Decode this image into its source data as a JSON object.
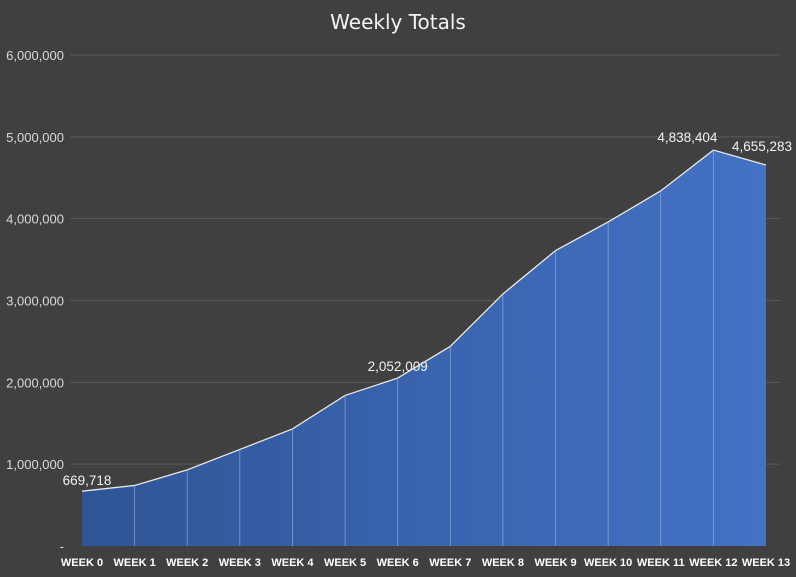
{
  "chart_data": {
    "type": "area",
    "title": "Weekly Totals",
    "xlabel": "",
    "ylabel": "",
    "categories": [
      "WEEK 0",
      "WEEK 1",
      "WEEK 2",
      "WEEK 3",
      "WEEK 4",
      "WEEK 5",
      "WEEK 6",
      "WEEK 7",
      "WEEK 8",
      "WEEK 9",
      "WEEK 10",
      "WEEK 11",
      "WEEK 12",
      "WEEK 13"
    ],
    "values": [
      669718,
      740000,
      930000,
      1180000,
      1430000,
      1840000,
      2052009,
      2440000,
      3080000,
      3610000,
      3960000,
      4340000,
      4838404,
      4655283
    ],
    "data_labels": [
      {
        "index": 0,
        "text": "669,718"
      },
      {
        "index": 6,
        "text": "2,052,009"
      },
      {
        "index": 12,
        "text": "4,838,404"
      },
      {
        "index": 13,
        "text": "4,655,283"
      }
    ],
    "ylim": [
      0,
      6000000
    ],
    "y_ticks": [
      0,
      1000000,
      2000000,
      3000000,
      4000000,
      5000000,
      6000000
    ],
    "y_tick_labels": [
      "-",
      "1,000,000",
      "2,000,000",
      "3,000,000",
      "4,000,000",
      "5,000,000",
      "6,000,000"
    ],
    "grid": true,
    "legend": "none",
    "colors": {
      "background": "#404040",
      "area_start": "#2e5597",
      "area_end": "#4472c4",
      "line": "#e8e8e8",
      "gridline": "#595959"
    }
  }
}
